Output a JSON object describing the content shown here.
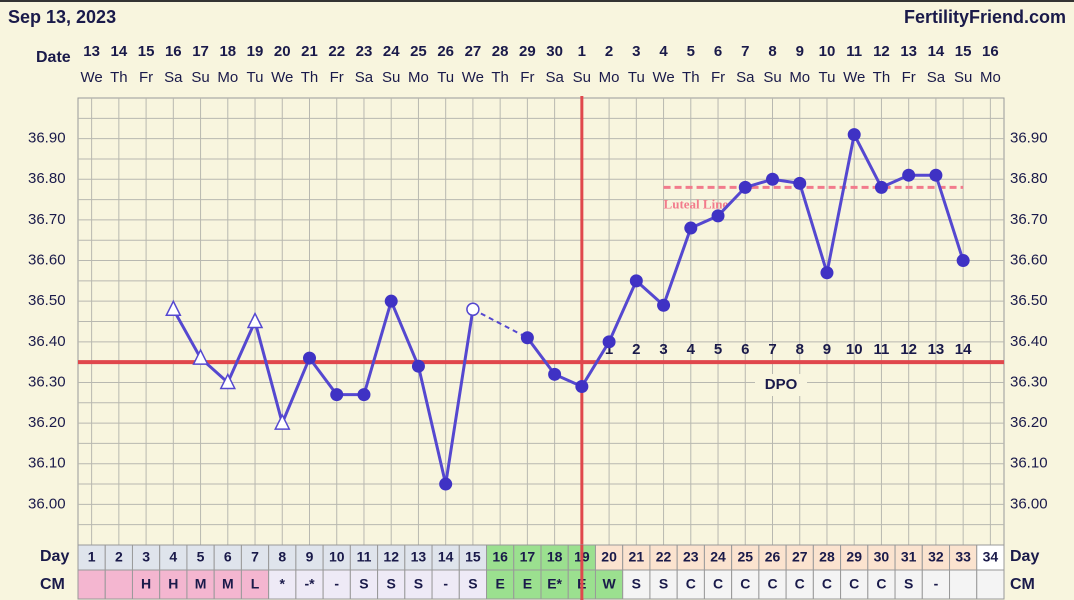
{
  "chart_data": {
    "type": "line",
    "title": "Sep 13, 2023",
    "site": "FertilityFriend.com",
    "date_label": "Date",
    "day_label": "Day",
    "cm_label": "CM",
    "dates": [
      13,
      14,
      15,
      16,
      17,
      18,
      19,
      20,
      21,
      22,
      23,
      24,
      25,
      26,
      27,
      28,
      29,
      30,
      1,
      2,
      3,
      4,
      5,
      6,
      7,
      8,
      9,
      10,
      11,
      12,
      13,
      14,
      15,
      16
    ],
    "weekdays": [
      "We",
      "Th",
      "Fr",
      "Sa",
      "Su",
      "Mo",
      "Tu",
      "We",
      "Th",
      "Fr",
      "Sa",
      "Su",
      "Mo",
      "Tu",
      "We",
      "Th",
      "Fr",
      "Sa",
      "Su",
      "Mo",
      "Tu",
      "We",
      "Th",
      "Fr",
      "Sa",
      "Su",
      "Mo",
      "Tu",
      "We",
      "Th",
      "Fr",
      "Sa",
      "Su",
      "Mo"
    ],
    "categories": [
      1,
      2,
      3,
      4,
      5,
      6,
      7,
      8,
      9,
      10,
      11,
      12,
      13,
      14,
      15,
      16,
      17,
      18,
      19,
      20,
      21,
      22,
      23,
      24,
      25,
      26,
      27,
      28,
      29,
      30,
      31,
      32,
      33,
      34
    ],
    "series": [
      {
        "name": "Temperature",
        "color": "#5548d0",
        "values": [
          null,
          null,
          null,
          36.48,
          36.36,
          36.3,
          36.45,
          36.2,
          36.36,
          36.27,
          36.27,
          36.5,
          36.34,
          36.05,
          36.48,
          null,
          36.41,
          36.32,
          36.29,
          36.4,
          36.55,
          36.49,
          36.68,
          36.71,
          36.78,
          36.8,
          36.79,
          36.57,
          36.91,
          36.78,
          36.81,
          36.81,
          36.6,
          null
        ],
        "markers": [
          null,
          null,
          null,
          "open-triangle",
          "open-triangle",
          "open-triangle",
          "open-triangle",
          "open-triangle",
          "dot",
          "dot",
          "dot",
          "dot",
          "dot",
          "dot",
          "open-circle",
          null,
          "dot",
          "dot",
          "dot",
          "dot",
          "dot",
          "dot",
          "dot",
          "dot",
          "dot",
          "dot",
          "dot",
          "dot",
          "dot",
          "dot",
          "dot",
          "dot",
          "dot",
          null
        ]
      }
    ],
    "cm": [
      null,
      null,
      "H",
      "H",
      "M",
      "M",
      "L",
      "*",
      "-*",
      "-",
      "S",
      "S",
      "S",
      "-",
      "S",
      "E",
      "E",
      "E*",
      "E",
      "W",
      "S",
      "S",
      "C",
      "C",
      "C",
      "C",
      "C",
      "C",
      "C",
      "C",
      "S",
      "-",
      null,
      null
    ],
    "day_fill": [
      "#dfe4ec",
      "#dfe4ec",
      "#dfe4ec",
      "#dfe4ec",
      "#dfe4ec",
      "#dfe4ec",
      "#dfe4ec",
      "#dfe4ec",
      "#dfe4ec",
      "#dfe4ec",
      "#dfe4ec",
      "#dfe4ec",
      "#dfe4ec",
      "#dfe4ec",
      "#dfe4ec",
      "#9be08f",
      "#9be08f",
      "#9be08f",
      "#9be08f",
      "#fbe3cf",
      "#fbe3cf",
      "#fbe3cf",
      "#fbe3cf",
      "#fbe3cf",
      "#fbe3cf",
      "#fbe3cf",
      "#fbe3cf",
      "#fbe3cf",
      "#fbe3cf",
      "#fbe3cf",
      "#fbe3cf",
      "#fbe3cf",
      "#fbe3cf",
      "#ffffff"
    ],
    "cm_fill": [
      "#f4b6d0",
      "#f4b6d0",
      "#f4b6d0",
      "#f4b6d0",
      "#f4b6d0",
      "#f4b6d0",
      "#f4b6d0",
      "#eeeaf6",
      "#eeeaf6",
      "#eeeaf6",
      "#eeeaf6",
      "#eeeaf6",
      "#eeeaf6",
      "#eeeaf6",
      "#eeeaf6",
      "#9be08f",
      "#9be08f",
      "#9be08f",
      "#9be08f",
      "#9be08f",
      "#f4f4f4",
      "#f4f4f4",
      "#f4f4f4",
      "#f4f4f4",
      "#f4f4f4",
      "#f4f4f4",
      "#f4f4f4",
      "#f4f4f4",
      "#f4f4f4",
      "#f4f4f4",
      "#f4f4f4",
      "#f4f4f4",
      "#f4f4f4",
      "#f4f4f4"
    ],
    "ylim": [
      35.9,
      37.0
    ],
    "yticks": [
      {
        "value": 36.0,
        "label": "36.00"
      },
      {
        "value": 36.1,
        "label": "36.10"
      },
      {
        "value": 36.2,
        "label": "36.20"
      },
      {
        "value": 36.3,
        "label": "36.30"
      },
      {
        "value": 36.4,
        "label": "36.40"
      },
      {
        "value": 36.5,
        "label": "36.50"
      },
      {
        "value": 36.6,
        "label": "36.60"
      },
      {
        "value": 36.7,
        "label": "36.70"
      },
      {
        "value": 36.8,
        "label": "36.80"
      },
      {
        "value": 36.9,
        "label": "36.90"
      }
    ],
    "minor_yticks": [
      35.95,
      36.05,
      36.15,
      36.25,
      36.35,
      36.45,
      36.55,
      36.65,
      36.75,
      36.85,
      36.95
    ],
    "grid": true,
    "coverline": 36.35,
    "coverline_color": "#e0474c",
    "ovulation_day": 19,
    "luteal_line": {
      "value": 36.78,
      "label": "Luteal Line",
      "from": 22,
      "to": 33,
      "color": "#f27b8c"
    },
    "dpo_label": "DPO",
    "dpo": [
      null,
      null,
      null,
      null,
      null,
      null,
      null,
      null,
      null,
      null,
      null,
      null,
      null,
      null,
      null,
      null,
      null,
      null,
      null,
      1,
      2,
      3,
      4,
      5,
      6,
      7,
      8,
      9,
      10,
      11,
      12,
      13,
      14,
      null
    ]
  }
}
